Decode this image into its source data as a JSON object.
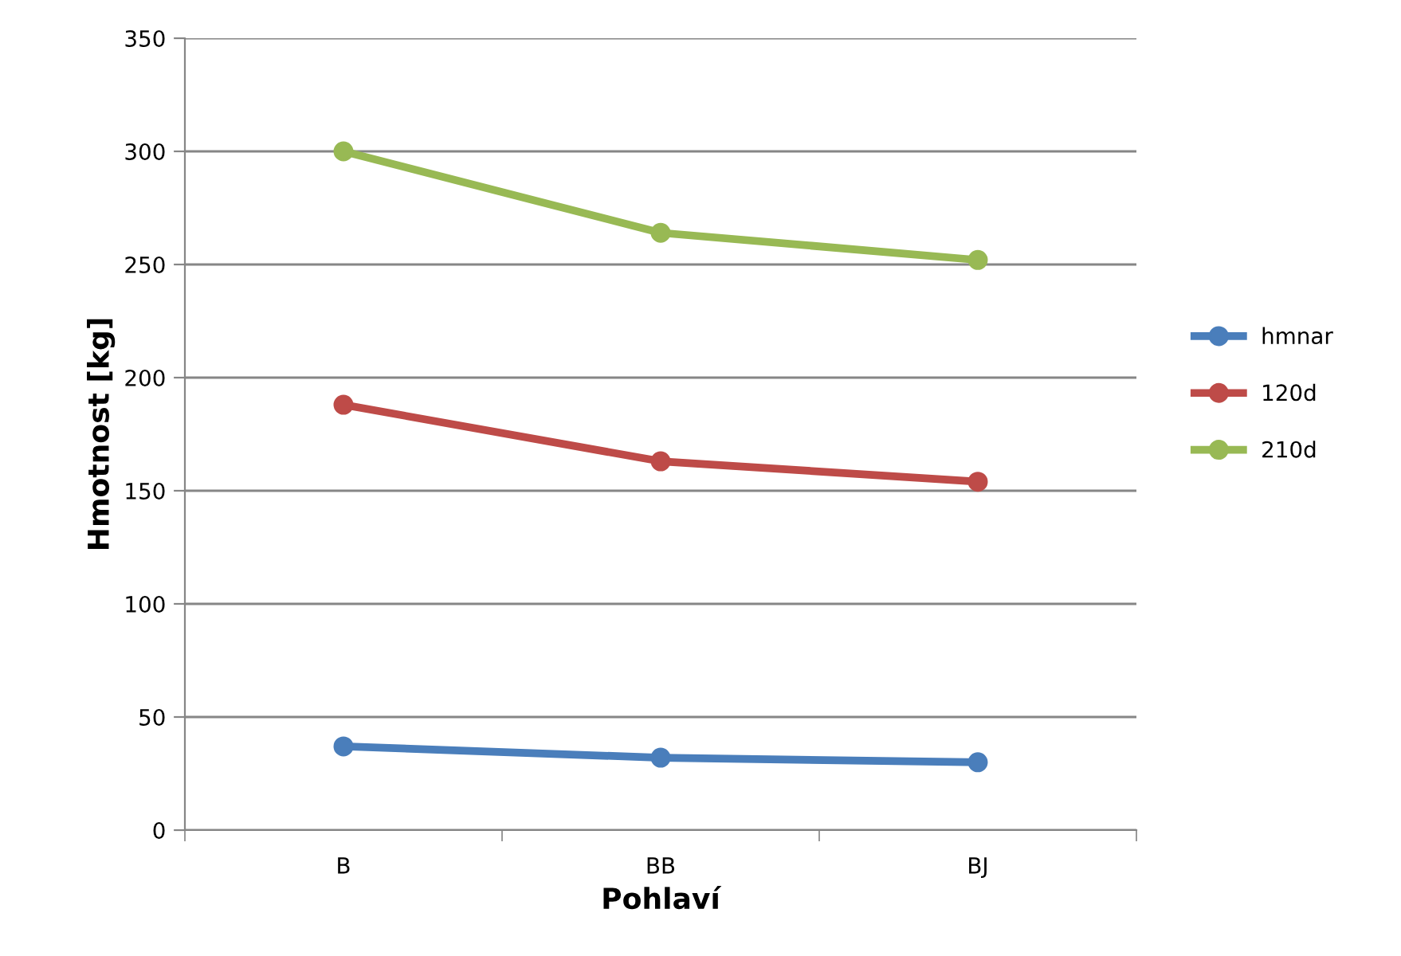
{
  "chart_data": {
    "type": "line",
    "xlabel": "Pohlaví",
    "ylabel": "Hmotnost [kg]",
    "categories": [
      "B",
      "BB",
      "BJ"
    ],
    "series": [
      {
        "name": "hmnar",
        "color": "#4a7ebb",
        "values": [
          37,
          32,
          30
        ]
      },
      {
        "name": "120d",
        "color": "#be4b48",
        "values": [
          188,
          163,
          154
        ]
      },
      {
        "name": "210d",
        "color": "#98b954",
        "values": [
          300,
          264,
          252
        ]
      }
    ],
    "ylim": [
      0,
      350
    ],
    "yticks": [
      0,
      50,
      100,
      150,
      200,
      250,
      300,
      350
    ],
    "grid": "y",
    "legend": "right",
    "marker": "circle",
    "line_style": "solid"
  }
}
